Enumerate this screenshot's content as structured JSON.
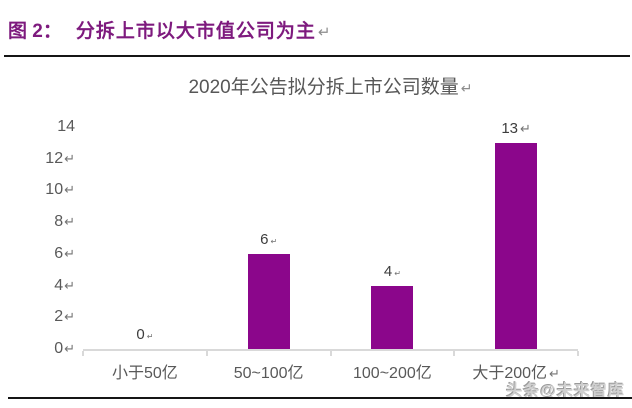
{
  "header": {
    "figure_label": "图 2：",
    "title": "分拆上市以大市值公司为主",
    "return_mark": "↵"
  },
  "chart_data": {
    "type": "bar",
    "title": "2020年公告拟分拆上市公司数量",
    "title_mark": "↵",
    "categories": [
      "小于50亿",
      "50~100亿",
      "100~200亿",
      "大于200亿"
    ],
    "values": [
      0,
      6,
      4,
      13
    ],
    "xlabel": "",
    "ylabel": "",
    "ylim": [
      0,
      14
    ],
    "y_tick_values": [
      0,
      2,
      4,
      6,
      8,
      10,
      12,
      14
    ],
    "bar_color": "#8B068B",
    "gridlines": "none",
    "legend": "none",
    "display": {
      "y_tick_marks": [
        "↵",
        "↵",
        "↵",
        "↵",
        "↵",
        "↵",
        "↵",
        ""
      ],
      "category_marks": [
        "",
        "",
        "",
        "↵"
      ],
      "value_labels": [
        "0",
        "6",
        "4",
        "13"
      ],
      "value_label_marks": [
        "↵",
        "↵",
        "↵",
        "↵"
      ],
      "value_label_mark_small": [
        true,
        true,
        true,
        false
      ]
    }
  },
  "watermark": {
    "text": "头条@未来智库"
  },
  "colors": {
    "header_text": "#7E1A7E",
    "bar": "#8B068B",
    "axis_line": "#D9D9D9",
    "tick_text": "#595959",
    "divider": "#151515"
  }
}
